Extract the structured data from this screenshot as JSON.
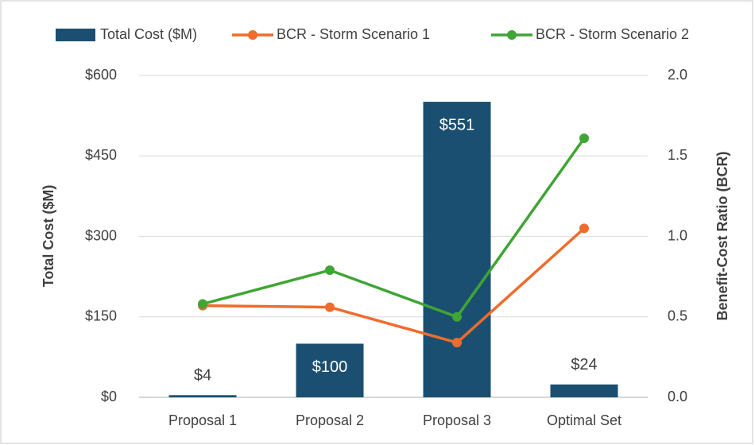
{
  "chart_data": {
    "type": "combo",
    "categories": [
      "Proposal 1",
      "Proposal 2",
      "Proposal 3",
      "Optimal Set"
    ],
    "series": [
      {
        "name": "Total Cost ($M)",
        "type": "bar",
        "color": "#1b4f72",
        "values": [
          4,
          100,
          551,
          24
        ],
        "value_labels": [
          "$4",
          "$100",
          "$551",
          "$24"
        ]
      },
      {
        "name": "BCR - Storm Scenario 1",
        "type": "line",
        "axis": "y2",
        "color": "#ef6c2c",
        "values": [
          0.57,
          0.56,
          0.34,
          1.05
        ]
      },
      {
        "name": "BCR - Storm Scenario 2",
        "type": "line",
        "axis": "y2",
        "color": "#3fa535",
        "values": [
          0.58,
          0.79,
          0.5,
          1.61
        ]
      }
    ],
    "ylabel": "Total Cost ($M)",
    "y2label": "Benefit-Cost Ratio (BCR)",
    "ylim": [
      0,
      600
    ],
    "yticks": [
      {
        "value": 0,
        "label": "$0"
      },
      {
        "value": 150,
        "label": "$150"
      },
      {
        "value": 300,
        "label": "$300"
      },
      {
        "value": 450,
        "label": "$450"
      },
      {
        "value": 600,
        "label": "$600"
      }
    ],
    "y2lim": [
      0,
      2
    ],
    "y2ticks": [
      {
        "value": 0,
        "label": "0.0"
      },
      {
        "value": 0.5,
        "label": "0.5"
      },
      {
        "value": 1,
        "label": "1.0"
      },
      {
        "value": 1.5,
        "label": "1.5"
      },
      {
        "value": 2,
        "label": "2.0"
      }
    ],
    "grid": true,
    "legend": "top"
  }
}
